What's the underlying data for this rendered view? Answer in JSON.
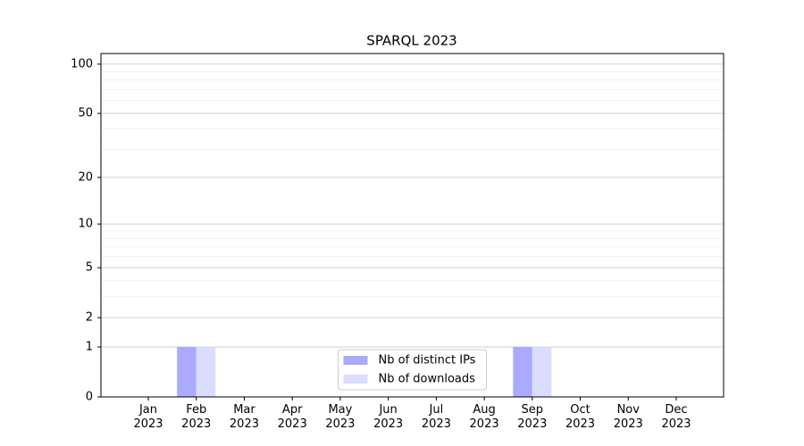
{
  "chart_data": {
    "type": "bar",
    "title": "SPARQL 2023",
    "categories": [
      "Jan\n2023",
      "Feb\n2023",
      "Mar\n2023",
      "Apr\n2023",
      "May\n2023",
      "Jun\n2023",
      "Jul\n2023",
      "Aug\n2023",
      "Sep\n2023",
      "Oct\n2023",
      "Nov\n2023",
      "Dec\n2023"
    ],
    "series": [
      {
        "name": "Nb of distinct IPs",
        "color": "#aaaaff",
        "values": [
          0,
          1,
          0,
          0,
          0,
          0,
          0,
          0,
          1,
          0,
          0,
          0
        ]
      },
      {
        "name": "Nb of downloads",
        "color": "#dcdcff",
        "values": [
          0,
          1,
          0,
          0,
          0,
          0,
          0,
          0,
          1,
          0,
          0,
          0
        ]
      }
    ],
    "yscale": "log1p",
    "ylim": [
      0,
      116
    ],
    "yticks": [
      0,
      1,
      2,
      5,
      10,
      20,
      50,
      100
    ],
    "minor_yticks": [
      3,
      4,
      6,
      7,
      8,
      9,
      30,
      40,
      60,
      70,
      80,
      90
    ],
    "grid": true,
    "legend_loc": "lower center"
  }
}
